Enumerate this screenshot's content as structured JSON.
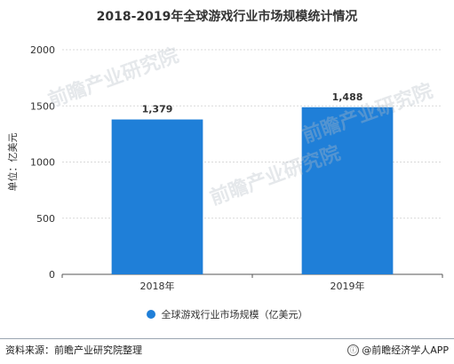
{
  "title": "2018-2019年全球游戏行业市场规模统计情况",
  "chart_data": {
    "type": "bar",
    "categories": [
      "2018年",
      "2019年"
    ],
    "series": [
      {
        "name": "全球游戏行业市场规模（亿美元）",
        "values": [
          1379,
          1488
        ],
        "value_labels": [
          "1,379",
          "1,488"
        ]
      }
    ],
    "ylabel": "单位：亿美元",
    "ylim": [
      0,
      2000
    ],
    "yticks": [
      0,
      500,
      1000,
      1500,
      2000
    ],
    "grid": true,
    "legend_position": "bottom",
    "bar_color": "#1f7fd8"
  },
  "legend": {
    "label": "全球游戏行业市场规模（亿美元）"
  },
  "footer": {
    "source": "资料来源：前瞻产业研究院整理",
    "brand_icon": "ⓘ",
    "brand": "@前瞻经济学人APP"
  },
  "watermark": {
    "text": "前瞻产业研究院"
  }
}
